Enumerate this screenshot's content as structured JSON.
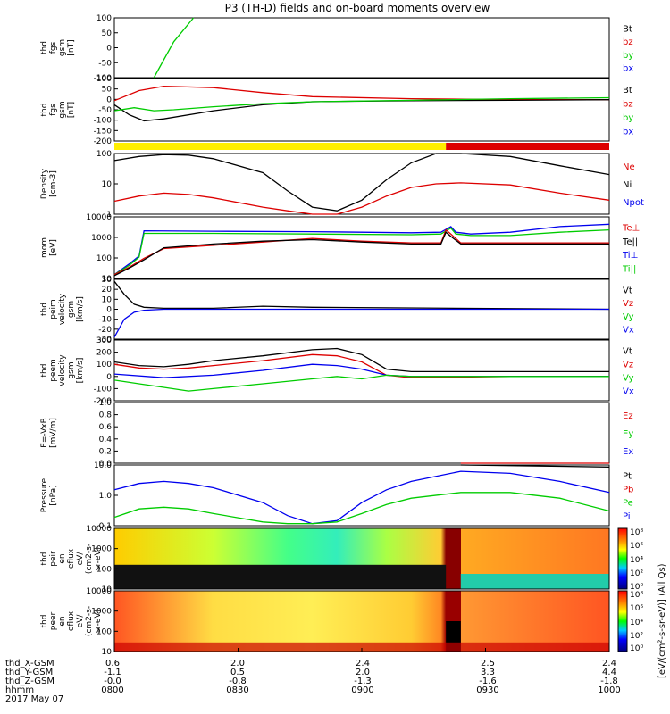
{
  "title": "P3 (TH-D) fields and on-board moments overview",
  "colors": {
    "black": "#000000",
    "red": "#dd0000",
    "green": "#00cc00",
    "blue": "#0000ee",
    "yellow": "#ffee00"
  },
  "footer": {
    "row_labels": [
      "thd_X-GSM",
      "thd_Y-GSM",
      "thd_Z-GSM",
      "hhmm",
      "2017 May 07"
    ],
    "columns": [
      {
        "x": "0.6",
        "y": "-1.1",
        "z": "-0.0",
        "t": "0800"
      },
      {
        "x": "2.0",
        "y": "0.5",
        "z": "-0.8",
        "t": "0830"
      },
      {
        "x": "2.4",
        "y": "2.0",
        "z": "-1.3",
        "t": "0900"
      },
      {
        "x": "2.5",
        "y": "3.3",
        "z": "-1.6",
        "t": "0930"
      },
      {
        "x": "2.4",
        "y": "4.4",
        "z": "-1.8",
        "t": "1000"
      }
    ]
  },
  "colorbar": {
    "ticks": [
      "10⁸",
      "10⁶",
      "10⁴",
      "10²",
      "10⁰"
    ],
    "ticks2": [
      "10⁸",
      "10⁶",
      "10⁴",
      "10²",
      "10⁰"
    ],
    "label": "[eV/(cm²-s-sr-eV)] (All Qs)"
  },
  "chart_data": [
    {
      "type": "line",
      "panel": "fgs_gsm",
      "ylabel": [
        "thd",
        "fgs",
        "gsm",
        "[nT]"
      ],
      "yticks": [
        "100",
        "50",
        "0",
        "-50",
        "-100"
      ],
      "ylim": [
        -100,
        100
      ],
      "legend": [
        {
          "name": "Bt",
          "color": "#000000"
        },
        {
          "name": "bz",
          "color": "#dd0000"
        },
        {
          "name": "by",
          "color": "#00cc00"
        },
        {
          "name": "bx",
          "color": "#0000ee"
        }
      ],
      "series": [
        {
          "name": "by",
          "x": [
            0.08,
            0.12,
            0.16
          ],
          "values": [
            -100,
            20,
            100
          ]
        }
      ]
    },
    {
      "type": "line",
      "panel": "fgs_gsm_zoom",
      "ylabel": [
        "thd",
        "fgs",
        "gsm",
        "[nT]"
      ],
      "yticks": [
        "100",
        "50",
        "0",
        "-50",
        "-100",
        "-150",
        "-200"
      ],
      "ylim": [
        -210,
        100
      ],
      "legend": [
        {
          "name": "Bt",
          "color": "#000000"
        },
        {
          "name": "bz",
          "color": "#dd0000"
        },
        {
          "name": "by",
          "color": "#00cc00"
        },
        {
          "name": "bx",
          "color": "#0000ee"
        }
      ],
      "series": [
        {
          "name": "bz",
          "x": [
            0,
            0.05,
            0.1,
            0.2,
            0.3,
            0.4,
            0.6,
            0.8,
            1
          ],
          "values": [
            -10,
            40,
            62,
            55,
            30,
            10,
            0,
            -5,
            -5
          ]
        },
        {
          "name": "Bt",
          "x": [
            0,
            0.03,
            0.06,
            0.1,
            0.2,
            0.3,
            0.4,
            0.6,
            0.8,
            1
          ],
          "values": [
            -30,
            -80,
            -110,
            -100,
            -60,
            -30,
            -15,
            -10,
            -8,
            -5
          ]
        },
        {
          "name": "by",
          "x": [
            0,
            0.04,
            0.08,
            0.12,
            0.2,
            0.3,
            0.4,
            0.6,
            0.8,
            1
          ],
          "values": [
            -60,
            -45,
            -60,
            -55,
            -40,
            -25,
            -15,
            -8,
            0,
            5
          ]
        }
      ]
    },
    {
      "type": "bar",
      "panel": "mode_bar",
      "segments": [
        {
          "x0": 0,
          "x1": 0.67,
          "color": "#ffee00"
        },
        {
          "x0": 0.67,
          "x1": 1,
          "color": "#dd0000"
        }
      ]
    },
    {
      "type": "line",
      "panel": "density",
      "ylabel": [
        "Density",
        "[cm-3]"
      ],
      "yticks": [
        "100",
        "10",
        "1"
      ],
      "log": true,
      "ylim": [
        0.5,
        200
      ],
      "legend": [
        {
          "name": "Ne",
          "color": "#dd0000"
        },
        {
          "name": "Ni",
          "color": "#000000"
        },
        {
          "name": "Npot",
          "color": "#0000ee"
        }
      ],
      "series": [
        {
          "name": "Ni",
          "x": [
            0,
            0.05,
            0.1,
            0.15,
            0.2,
            0.3,
            0.35,
            0.4,
            0.45,
            0.5,
            0.55,
            0.6,
            0.65,
            0.7,
            0.8,
            0.9,
            1
          ],
          "values": [
            100,
            150,
            180,
            170,
            120,
            30,
            5,
            1,
            0.7,
            2,
            15,
            80,
            200,
            250,
            150,
            60,
            25
          ]
        },
        {
          "name": "Ne",
          "x": [
            0,
            0.05,
            0.1,
            0.15,
            0.2,
            0.3,
            0.35,
            0.4,
            0.45,
            0.5,
            0.55,
            0.6,
            0.65,
            0.7,
            0.8,
            0.9,
            1
          ],
          "values": [
            1.8,
            3,
            4,
            3.5,
            2.5,
            1,
            0.7,
            0.5,
            0.5,
            1,
            3,
            7,
            10,
            11,
            9,
            4,
            2
          ]
        }
      ]
    },
    {
      "type": "line",
      "panel": "temperature",
      "ylabel": [
        "mom",
        "[eV]"
      ],
      "yticks": [
        "10000",
        "1000",
        "100",
        "10"
      ],
      "log": true,
      "ylim": [
        5,
        10000
      ],
      "legend": [
        {
          "name": "Te⊥",
          "color": "#dd0000"
        },
        {
          "name": "Te||",
          "color": "#000000"
        },
        {
          "name": "Ti⊥",
          "color": "#0000ee"
        },
        {
          "name": "Ti||",
          "color": "#00cc00"
        }
      ],
      "series": [
        {
          "name": "Ti⊥",
          "x": [
            0,
            0.03,
            0.05,
            0.06,
            0.2,
            0.4,
            0.6,
            0.66,
            0.68,
            0.69,
            0.72,
            0.8,
            0.9,
            1
          ],
          "values": [
            8,
            30,
            80,
            1800,
            1700,
            1600,
            1400,
            1500,
            3000,
            1500,
            1200,
            1500,
            3000,
            4000
          ]
        },
        {
          "name": "Ti||",
          "x": [
            0,
            0.03,
            0.05,
            0.06,
            0.2,
            0.4,
            0.6,
            0.66,
            0.68,
            0.69,
            0.72,
            0.8,
            0.9,
            1
          ],
          "values": [
            8,
            25,
            70,
            1300,
            1300,
            1200,
            1100,
            1200,
            2500,
            1200,
            1000,
            1000,
            1500,
            2000
          ]
        },
        {
          "name": "Te⊥",
          "x": [
            0,
            0.03,
            0.06,
            0.1,
            0.2,
            0.3,
            0.4,
            0.5,
            0.6,
            0.66,
            0.67,
            0.68,
            0.7,
            1
          ],
          "values": [
            8,
            20,
            60,
            200,
            300,
            450,
            700,
            500,
            400,
            400,
            2000,
            1200,
            400,
            400
          ]
        },
        {
          "name": "Te||",
          "x": [
            0,
            0.03,
            0.06,
            0.1,
            0.2,
            0.3,
            0.4,
            0.5,
            0.6,
            0.66,
            0.67,
            0.68,
            0.7,
            1
          ],
          "values": [
            7,
            18,
            50,
            220,
            350,
            500,
            600,
            450,
            350,
            350,
            1500,
            900,
            350,
            350
          ]
        }
      ]
    },
    {
      "type": "line",
      "panel": "peim_velocity",
      "ylabel": [
        "thd",
        "peim",
        "velocity",
        "gsm",
        "[km/s]"
      ],
      "yticks": [
        "30",
        "20",
        "10",
        "0",
        "-10",
        "-20",
        "-30"
      ],
      "ylim": [
        -30,
        30
      ],
      "legend": [
        {
          "name": "Vt",
          "color": "#000000"
        },
        {
          "name": "Vz",
          "color": "#dd0000"
        },
        {
          "name": "Vy",
          "color": "#00cc00"
        },
        {
          "name": "Vx",
          "color": "#0000ee"
        }
      ],
      "series": [
        {
          "name": "Vt",
          "x": [
            0,
            0.02,
            0.04,
            0.06,
            0.1,
            0.2,
            0.3,
            0.4,
            1
          ],
          "values": [
            28,
            15,
            5,
            2,
            1,
            1,
            3,
            2,
            0
          ]
        },
        {
          "name": "Vx",
          "x": [
            0,
            0.02,
            0.04,
            0.06,
            0.1,
            0.2,
            1
          ],
          "values": [
            -28,
            -10,
            -3,
            -1,
            0,
            0,
            0
          ]
        }
      ]
    },
    {
      "type": "line",
      "panel": "peem_velocity",
      "ylabel": [
        "thd",
        "peem",
        "velocity",
        "gsm",
        "[km/s]"
      ],
      "yticks": [
        "300",
        "200",
        "100",
        "0",
        "-100",
        "-200"
      ],
      "ylim": [
        -200,
        300
      ],
      "legend": [
        {
          "name": "Vt",
          "color": "#000000"
        },
        {
          "name": "Vz",
          "color": "#dd0000"
        },
        {
          "name": "Vy",
          "color": "#00cc00"
        },
        {
          "name": "Vx",
          "color": "#0000ee"
        }
      ],
      "series": [
        {
          "name": "Vt",
          "x": [
            0,
            0.05,
            0.1,
            0.15,
            0.2,
            0.3,
            0.4,
            0.45,
            0.5,
            0.55,
            0.6,
            0.8,
            1
          ],
          "values": [
            120,
            90,
            80,
            100,
            130,
            170,
            220,
            230,
            180,
            60,
            40,
            40,
            40
          ]
        },
        {
          "name": "Vz",
          "x": [
            0,
            0.05,
            0.1,
            0.15,
            0.2,
            0.3,
            0.4,
            0.45,
            0.5,
            0.55,
            0.6,
            0.8,
            1
          ],
          "values": [
            100,
            70,
            60,
            70,
            90,
            130,
            180,
            170,
            120,
            10,
            -10,
            0,
            0
          ]
        },
        {
          "name": "Vx",
          "x": [
            0,
            0.1,
            0.2,
            0.3,
            0.4,
            0.45,
            0.5,
            0.55,
            0.6,
            1
          ],
          "values": [
            20,
            -10,
            10,
            50,
            100,
            90,
            60,
            10,
            0,
            0
          ]
        },
        {
          "name": "Vy",
          "x": [
            0,
            0.05,
            0.1,
            0.15,
            0.2,
            0.3,
            0.4,
            0.45,
            0.5,
            0.55,
            0.6,
            1
          ],
          "values": [
            -30,
            -60,
            -90,
            -120,
            -100,
            -60,
            -20,
            0,
            -20,
            10,
            0,
            0
          ]
        }
      ]
    },
    {
      "type": "line",
      "panel": "efield",
      "ylabel": [
        "E=-VxB",
        "[mV/m]"
      ],
      "yticks": [
        "1.0",
        "0.8",
        "0.6",
        "0.4",
        "0.2",
        "0.0"
      ],
      "ylim": [
        0,
        1
      ],
      "legend": [
        {
          "name": "Ez",
          "color": "#dd0000"
        },
        {
          "name": "Ey",
          "color": "#00cc00"
        },
        {
          "name": "Ex",
          "color": "#0000ee"
        }
      ],
      "series": [
        {
          "name": "Ez",
          "x": [
            0.7,
            1
          ],
          "values": [
            0.0,
            -0.05
          ]
        }
      ]
    },
    {
      "type": "line",
      "panel": "pressure",
      "ylabel": [
        "Pressure",
        "[nPa]"
      ],
      "yticks": [
        "10.0",
        "1.0",
        "0.1"
      ],
      "log": true,
      "ylim": [
        0.04,
        30
      ],
      "legend": [
        {
          "name": "Pt",
          "color": "#000000"
        },
        {
          "name": "Pb",
          "color": "#dd0000"
        },
        {
          "name": "Pe",
          "color": "#00cc00"
        },
        {
          "name": "Pi",
          "color": "#0000ee"
        }
      ],
      "series": [
        {
          "name": "Pi",
          "x": [
            0,
            0.05,
            0.1,
            0.15,
            0.2,
            0.3,
            0.35,
            0.4,
            0.45,
            0.5,
            0.55,
            0.6,
            0.7,
            0.8,
            0.9,
            1
          ],
          "values": [
            2,
            4,
            5,
            4,
            2.5,
            0.5,
            0.12,
            0.05,
            0.07,
            0.5,
            2,
            5,
            15,
            12,
            5,
            1.5
          ]
        },
        {
          "name": "Pe",
          "x": [
            0,
            0.05,
            0.1,
            0.15,
            0.2,
            0.3,
            0.35,
            0.4,
            0.45,
            0.5,
            0.55,
            0.6,
            0.7,
            0.8,
            0.9,
            1
          ],
          "values": [
            0.1,
            0.25,
            0.3,
            0.25,
            0.15,
            0.06,
            0.05,
            0.05,
            0.06,
            0.15,
            0.4,
            0.8,
            1.5,
            1.5,
            0.8,
            0.2
          ]
        },
        {
          "name": "Pt",
          "x": [
            0.7,
            0.8,
            0.9,
            1
          ],
          "values": [
            30,
            28,
            26,
            24
          ]
        }
      ]
    },
    {
      "type": "heatmap",
      "panel": "peir_eflux",
      "ylabel": [
        "thd",
        "peir",
        "en",
        "eflux",
        "eV/",
        "(cm2-s-",
        "sr-eV)"
      ],
      "yticks": [
        "10000",
        "1000",
        "100",
        "10"
      ]
    },
    {
      "type": "heatmap",
      "panel": "peer_eflux",
      "ylabel": [
        "thd",
        "peer",
        "en",
        "eflux",
        "eV/",
        "(cm2-s-",
        "sr-eV)"
      ],
      "yticks": [
        "10000",
        "1000",
        "100",
        "10"
      ]
    }
  ]
}
